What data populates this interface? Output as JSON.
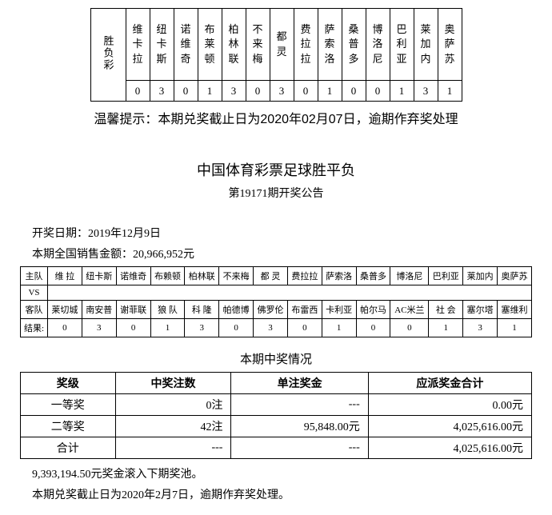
{
  "top_table": {
    "label": "胜负彩",
    "teams": [
      "维卡拉",
      "纽卡斯",
      "诺维奇",
      "布莱顿",
      "柏林联",
      "不来梅",
      "都灵",
      "费拉拉",
      "萨索洛",
      "桑普多",
      "博洛尼",
      "巴利亚",
      "莱加内",
      "奥萨苏"
    ],
    "results": [
      "0",
      "3",
      "0",
      "1",
      "3",
      "0",
      "3",
      "0",
      "1",
      "0",
      "0",
      "1",
      "3",
      "1"
    ]
  },
  "reminder": "温馨提示：本期兑奖截止日为2020年02月07日，逾期作弃奖处理",
  "title": "中国体育彩票足球胜平负",
  "subtitle": "第19171期开奖公告",
  "open_date_label": "开奖日期：",
  "open_date": "2019年12月9日",
  "sales_label": "本期全国销售金额：",
  "sales_amount": "20,966,952元",
  "match": {
    "row_labels": [
      "主队",
      "VS",
      "客队",
      "结果:"
    ],
    "home": [
      "维  拉",
      "纽卡斯",
      "诺维奇",
      "布赖顿",
      "柏林联",
      "不来梅",
      "都  灵",
      "费拉拉",
      "萨索洛",
      "桑普多",
      "博洛尼",
      "巴利亚",
      "莱加内",
      "奥萨苏"
    ],
    "away": [
      "莱切城",
      "南安普",
      "谢菲联",
      "狼  队",
      "科  隆",
      "帕德博",
      "佛罗伦",
      "布雷西",
      "卡利亚",
      "帕尔马",
      "AC米兰",
      "社  会",
      "塞尔塔",
      "塞维利"
    ],
    "results": [
      "0",
      "3",
      "0",
      "1",
      "3",
      "0",
      "3",
      "0",
      "1",
      "0",
      "0",
      "1",
      "3",
      "1"
    ]
  },
  "prize_section_title": "本期中奖情况",
  "prize_headers": [
    "奖级",
    "中奖注数",
    "单注奖金",
    "应派奖金合计"
  ],
  "prize_rows": [
    {
      "grade": "一等奖",
      "count": "0注",
      "unit": "---",
      "total": "0.00元"
    },
    {
      "grade": "二等奖",
      "count": "42注",
      "unit": "95,848.00元",
      "total": "4,025,616.00元"
    },
    {
      "grade": "合计",
      "count": "---",
      "unit": "---",
      "total": "4,025,616.00元"
    }
  ],
  "rollover": "9,393,194.50元奖金滚入下期奖池。",
  "deadline": "本期兑奖截止日为2020年2月7日，逾期作弃奖处理。"
}
